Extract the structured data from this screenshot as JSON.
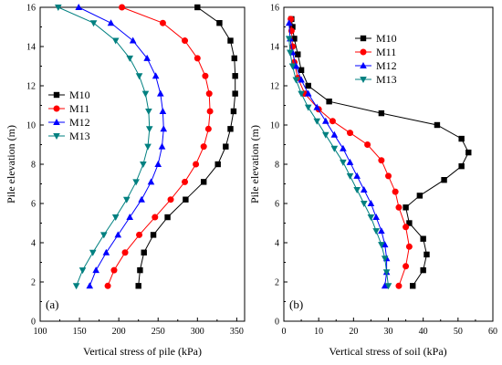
{
  "chart_data": [
    {
      "type": "line",
      "panel_label": "(a)",
      "xlabel": "Vertical stress of pile (kPa)",
      "ylabel": "Pile elevation (m)",
      "xlim": [
        100,
        360
      ],
      "ylim": [
        0,
        16
      ],
      "xticks": [
        "100",
        "150",
        "200",
        "250",
        "300",
        "350"
      ],
      "yticks": [
        "0",
        "2",
        "4",
        "6",
        "8",
        "10",
        "12",
        "14",
        "16"
      ],
      "legend_position": "center-left",
      "series": [
        {
          "name": "M10",
          "color": "#000000",
          "marker": "square",
          "x": [
            225,
            227,
            232,
            244,
            262,
            285,
            308,
            326,
            336,
            342,
            346,
            348,
            348,
            347,
            342,
            328,
            300
          ],
          "y": [
            1.8,
            2.6,
            3.5,
            4.4,
            5.3,
            6.2,
            7.1,
            8.0,
            8.9,
            9.8,
            10.7,
            11.6,
            12.5,
            13.4,
            14.3,
            15.2,
            16.0
          ]
        },
        {
          "name": "M11",
          "color": "#ff0000",
          "marker": "circle",
          "x": [
            186,
            194,
            208,
            226,
            246,
            266,
            284,
            298,
            308,
            314,
            316,
            315,
            310,
            300,
            284,
            256,
            204
          ],
          "y": [
            1.8,
            2.6,
            3.5,
            4.4,
            5.3,
            6.2,
            7.1,
            8.0,
            8.9,
            9.8,
            10.7,
            11.6,
            12.5,
            13.4,
            14.3,
            15.2,
            16.0
          ]
        },
        {
          "name": "M12",
          "color": "#0000ff",
          "marker": "triangle-up",
          "x": [
            163,
            171,
            184,
            199,
            214,
            229,
            241,
            250,
            255,
            257,
            256,
            253,
            247,
            236,
            218,
            190,
            149
          ],
          "y": [
            1.8,
            2.6,
            3.5,
            4.4,
            5.3,
            6.2,
            7.1,
            8.0,
            8.9,
            9.8,
            10.7,
            11.6,
            12.5,
            13.4,
            14.3,
            15.2,
            16.0
          ]
        },
        {
          "name": "M13",
          "color": "#008080",
          "marker": "triangle-down",
          "x": [
            146,
            154,
            167,
            181,
            196,
            210,
            222,
            231,
            237,
            239,
            238,
            234,
            226,
            214,
            196,
            168,
            123
          ],
          "y": [
            1.8,
            2.6,
            3.5,
            4.4,
            5.3,
            6.2,
            7.1,
            8.0,
            8.9,
            9.8,
            10.7,
            11.6,
            12.5,
            13.4,
            14.3,
            15.2,
            16.0
          ]
        }
      ]
    },
    {
      "type": "line",
      "panel_label": "(b)",
      "xlabel": "Vertical stress of soil (kPa)",
      "ylabel": "Pile elevation (m)",
      "xlim": [
        0,
        60
      ],
      "ylim": [
        0,
        16
      ],
      "xticks": [
        "0",
        "10",
        "20",
        "30",
        "40",
        "50",
        "60"
      ],
      "yticks": [
        "0",
        "2",
        "4",
        "6",
        "8",
        "10",
        "12",
        "14",
        "16"
      ],
      "legend_position": "top-right",
      "series": [
        {
          "name": "M10",
          "color": "#000000",
          "marker": "square",
          "x": [
            37,
            40,
            41,
            40,
            36,
            35,
            39,
            46,
            51,
            53,
            51,
            44,
            28,
            13,
            7,
            5,
            4,
            3,
            2.5,
            2.2
          ],
          "y": [
            1.8,
            2.6,
            3.4,
            4.2,
            5.0,
            5.8,
            6.4,
            7.2,
            7.9,
            8.6,
            9.3,
            10.0,
            10.6,
            11.2,
            12.0,
            12.8,
            13.6,
            14.4,
            15.0,
            15.4
          ]
        },
        {
          "name": "M11",
          "color": "#ff0000",
          "marker": "circle",
          "x": [
            33,
            35,
            36,
            35,
            33,
            32,
            30,
            28,
            24,
            19,
            14,
            10,
            6,
            4,
            3,
            2.5,
            2.2,
            2.0
          ],
          "y": [
            1.8,
            2.8,
            3.8,
            4.8,
            5.8,
            6.6,
            7.4,
            8.2,
            9.0,
            9.6,
            10.2,
            10.8,
            11.6,
            12.4,
            13.2,
            14.0,
            14.8,
            15.4
          ]
        },
        {
          "name": "M12",
          "color": "#0000ff",
          "marker": "triangle-up",
          "x": [
            29,
            29.5,
            29.5,
            29,
            28,
            26.5,
            25,
            23,
            21,
            19,
            17,
            14.5,
            12,
            9.5,
            7,
            5,
            3.5,
            2.5,
            1.8,
            1.5
          ],
          "y": [
            1.8,
            2.5,
            3.2,
            3.9,
            4.6,
            5.3,
            6.0,
            6.7,
            7.4,
            8.1,
            8.8,
            9.5,
            10.2,
            10.9,
            11.6,
            12.3,
            13.0,
            13.7,
            14.4,
            15.2
          ]
        },
        {
          "name": "M13",
          "color": "#008080",
          "marker": "triangle-down",
          "x": [
            30,
            29.5,
            29,
            28,
            26.5,
            25,
            23,
            21,
            19,
            17,
            14.5,
            12,
            9.5,
            7,
            5,
            3.5,
            2.5,
            1.8,
            1.5
          ],
          "y": [
            1.8,
            2.5,
            3.2,
            3.9,
            4.6,
            5.3,
            6.0,
            6.7,
            7.4,
            8.1,
            8.8,
            9.5,
            10.2,
            10.9,
            11.6,
            12.3,
            13.0,
            13.7,
            14.4
          ]
        }
      ]
    }
  ]
}
